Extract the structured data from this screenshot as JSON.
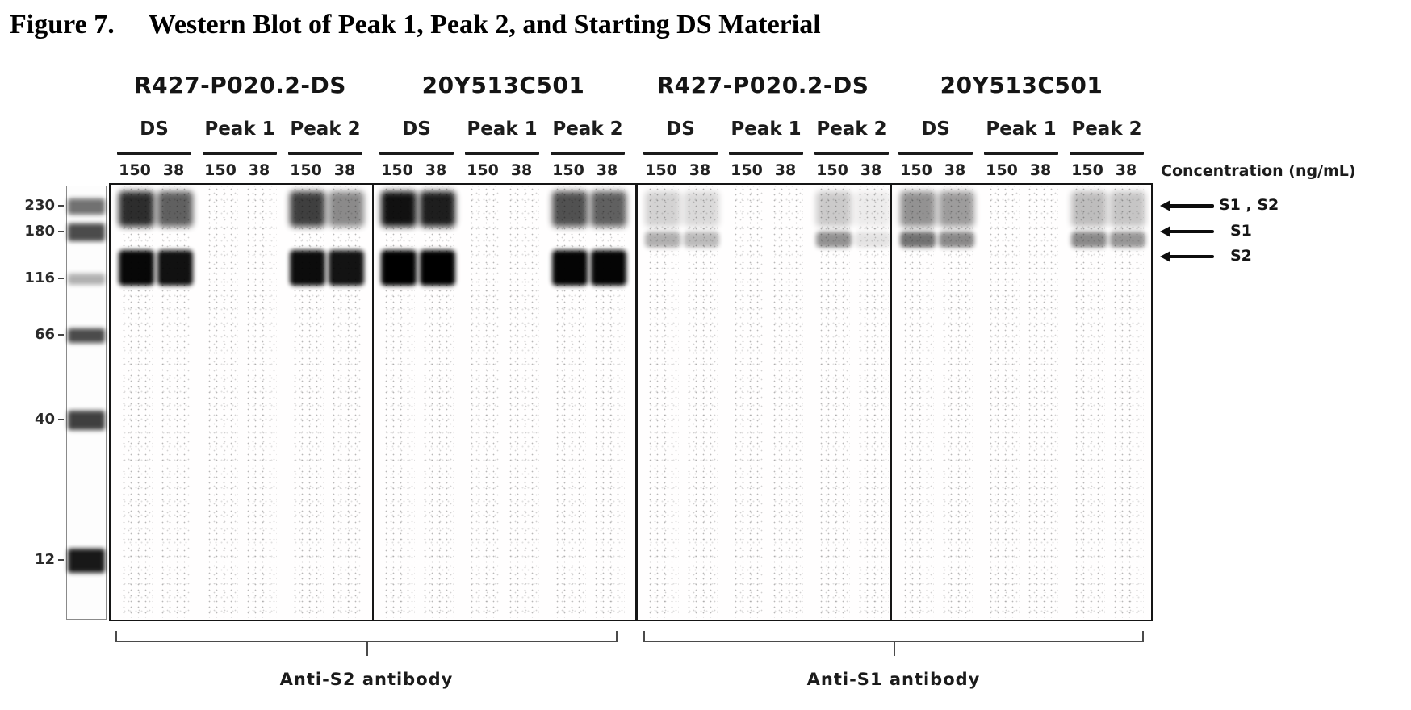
{
  "figure": {
    "number": "Figure 7.",
    "caption": "Western Blot of Peak 1, Peak 2, and Starting DS Material"
  },
  "concentration_label": "Concentration (ng/mL)",
  "band_color": "#000000",
  "ladder": {
    "markers": [
      {
        "label": "230",
        "intensity": 0.55
      },
      {
        "label": "180",
        "intensity": 0.7
      },
      {
        "label": "116",
        "intensity": 0.3
      },
      {
        "label": "66",
        "intensity": 0.7
      },
      {
        "label": "40",
        "intensity": 0.75
      },
      {
        "label": "12",
        "intensity": 0.9
      }
    ]
  },
  "legend": [
    {
      "label": "S1 , S2"
    },
    {
      "label": "S1"
    },
    {
      "label": "S2"
    }
  ],
  "brackets": [
    {
      "label": "Anti-S2 antibody"
    },
    {
      "label": "Anti-S1 antibody"
    }
  ],
  "groups": [
    {
      "sample": "R427-P020.2-DS",
      "antibody": "Anti-S2",
      "subgroups": [
        {
          "label": "DS",
          "lanes": [
            {
              "concentration": "150",
              "bands": {
                "s1s2": 0.82,
                "s2": 0.97
              }
            },
            {
              "concentration": "38",
              "bands": {
                "s1s2": 0.62,
                "s2": 0.93
              }
            }
          ]
        },
        {
          "label": "Peak 1",
          "lanes": [
            {
              "concentration": "150",
              "bands": {}
            },
            {
              "concentration": "38",
              "bands": {}
            }
          ]
        },
        {
          "label": "Peak 2",
          "lanes": [
            {
              "concentration": "150",
              "bands": {
                "s1s2": 0.75,
                "s2": 0.95
              }
            },
            {
              "concentration": "38",
              "bands": {
                "s1s2": 0.45,
                "s2": 0.92
              }
            }
          ]
        }
      ]
    },
    {
      "sample": "20Y513C501",
      "antibody": "Anti-S2",
      "subgroups": [
        {
          "label": "DS",
          "lanes": [
            {
              "concentration": "150",
              "bands": {
                "s1s2": 0.93,
                "s2": 1.0
              }
            },
            {
              "concentration": "38",
              "bands": {
                "s1s2": 0.88,
                "s2": 1.0
              }
            }
          ]
        },
        {
          "label": "Peak 1",
          "lanes": [
            {
              "concentration": "150",
              "bands": {}
            },
            {
              "concentration": "38",
              "bands": {}
            }
          ]
        },
        {
          "label": "Peak 2",
          "lanes": [
            {
              "concentration": "150",
              "bands": {
                "s1s2": 0.68,
                "s2": 0.98
              }
            },
            {
              "concentration": "38",
              "bands": {
                "s1s2": 0.62,
                "s2": 0.98
              }
            }
          ]
        }
      ]
    },
    {
      "sample": "R427-P020.2-DS",
      "antibody": "Anti-S1",
      "subgroups": [
        {
          "label": "DS",
          "lanes": [
            {
              "concentration": "150",
              "bands": {
                "s1s2": 0.17,
                "s1": 0.3
              }
            },
            {
              "concentration": "38",
              "bands": {
                "s1s2": 0.14,
                "s1": 0.26
              }
            }
          ]
        },
        {
          "label": "Peak 1",
          "lanes": [
            {
              "concentration": "150",
              "bands": {}
            },
            {
              "concentration": "38",
              "bands": {}
            }
          ]
        },
        {
          "label": "Peak 2",
          "lanes": [
            {
              "concentration": "150",
              "bands": {
                "s1s2": 0.2,
                "s1": 0.42
              }
            },
            {
              "concentration": "38",
              "bands": {
                "s1s2": 0.07,
                "s1": 0.1
              }
            }
          ]
        }
      ]
    },
    {
      "sample": "20Y513C501",
      "antibody": "Anti-S1",
      "subgroups": [
        {
          "label": "DS",
          "lanes": [
            {
              "concentration": "150",
              "bands": {
                "s1s2": 0.42,
                "s1": 0.55
              }
            },
            {
              "concentration": "38",
              "bands": {
                "s1s2": 0.38,
                "s1": 0.45
              }
            }
          ]
        },
        {
          "label": "Peak 1",
          "lanes": [
            {
              "concentration": "150",
              "bands": {}
            },
            {
              "concentration": "38",
              "bands": {}
            }
          ]
        },
        {
          "label": "Peak 2",
          "lanes": [
            {
              "concentration": "150",
              "bands": {
                "s1s2": 0.25,
                "s1": 0.45
              }
            },
            {
              "concentration": "38",
              "bands": {
                "s1s2": 0.22,
                "s1": 0.4
              }
            }
          ]
        }
      ]
    }
  ]
}
